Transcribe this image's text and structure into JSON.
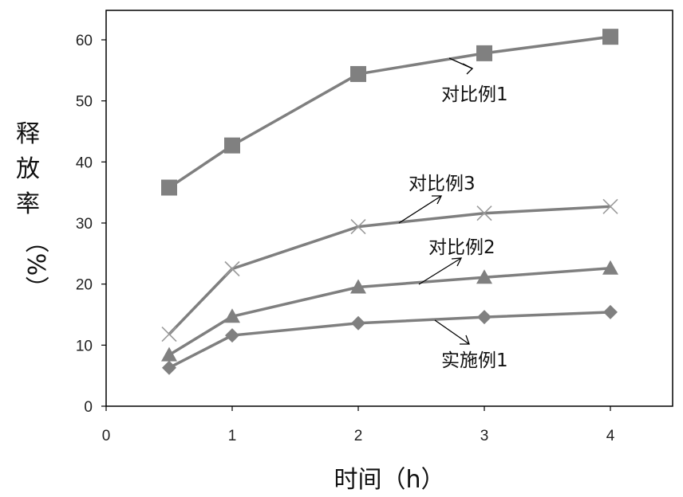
{
  "chart_data": {
    "type": "line",
    "title": "",
    "xlabel": "时间（h）",
    "ylabel_chars": [
      "释",
      "放",
      "率",
      "（%）"
    ],
    "xlim": [
      0,
      4
    ],
    "ylim": [
      0,
      60
    ],
    "x_ticks": [
      "0",
      "1",
      "2",
      "3",
      "4"
    ],
    "y_ticks": [
      "0",
      "10",
      "20",
      "30",
      "40",
      "50",
      "60"
    ],
    "grid": false,
    "legend": "none (series labeled with arrows)",
    "x": [
      0.5,
      1,
      2,
      3,
      4
    ],
    "series": [
      {
        "name": "对比例1",
        "marker": "square",
        "values": [
          35.8,
          42.7,
          54.4,
          57.8,
          60.5
        ]
      },
      {
        "name": "对比例3",
        "marker": "x",
        "values": [
          11.8,
          22.5,
          29.4,
          31.6,
          32.7
        ]
      },
      {
        "name": "对比例2",
        "marker": "triangle",
        "values": [
          8.4,
          14.7,
          19.5,
          21.1,
          22.6
        ]
      },
      {
        "name": "实施例1",
        "marker": "diamond",
        "values": [
          6.3,
          11.6,
          13.6,
          14.6,
          15.4
        ]
      }
    ],
    "colors": {
      "line": "#7f7f7f",
      "marker": "#808080",
      "axis": "#000000"
    }
  }
}
